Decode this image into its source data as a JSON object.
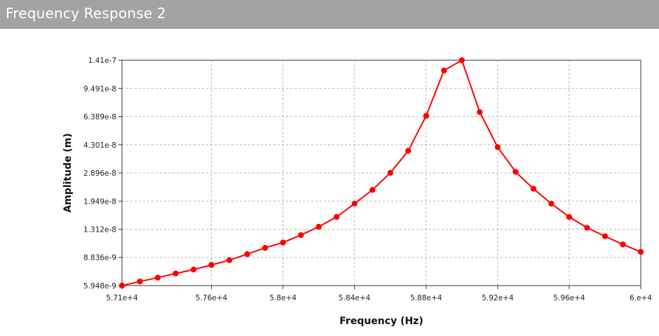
{
  "window": {
    "title": "Frequency Response 2"
  },
  "chart_data": {
    "type": "line",
    "title": "",
    "xlabel": "Frequency (Hz)",
    "ylabel": "Amplitude (m)",
    "x_ticks": [
      "5.71e+4",
      "5.76e+4",
      "5.8e+4",
      "5.84e+4",
      "5.88e+4",
      "5.92e+4",
      "5.96e+4",
      "6.e+4"
    ],
    "x_tick_values": [
      57100,
      57600,
      58000,
      58400,
      58800,
      59200,
      59600,
      60000
    ],
    "y_ticks": [
      "1.41e-7",
      "9.491e-8",
      "6.389e-8",
      "4.301e-8",
      "2.896e-8",
      "1.949e-8",
      "1.312e-8",
      "8.836e-9",
      "5.948e-9"
    ],
    "y_tick_values": [
      1.41e-07,
      9.491e-08,
      6.389e-08,
      4.301e-08,
      2.896e-08,
      1.949e-08,
      1.312e-08,
      8.836e-09,
      5.948e-09
    ],
    "xlim": [
      57100,
      60000
    ],
    "ylim": [
      5.948e-09,
      1.41e-07
    ],
    "y_scale": "log",
    "grid": true,
    "series_color": "#ff0000",
    "series": [
      {
        "x": [
          57100,
          57200,
          57300,
          57400,
          57500,
          57600,
          57700,
          57800,
          57900,
          58000,
          58100,
          58200,
          58300,
          58400,
          58500,
          58600,
          58700,
          58800,
          58900,
          59000,
          59100,
          59200,
          59300,
          59400,
          59500,
          59600,
          59700,
          59800,
          59900,
          60000
        ],
        "y": [
          5.95e-09,
          6.3e-09,
          6.65e-09,
          7.05e-09,
          7.45e-09,
          7.95e-09,
          8.5e-09,
          9.25e-09,
          1.01e-08,
          1.09e-08,
          1.21e-08,
          1.36e-08,
          1.56e-08,
          1.88e-08,
          2.28e-08,
          2.9e-08,
          3.95e-08,
          6.45e-08,
          1.22e-07,
          1.41e-07,
          6.8e-08,
          4.16e-08,
          2.94e-08,
          2.32e-08,
          1.88e-08,
          1.56e-08,
          1.34e-08,
          1.19e-08,
          1.06e-08,
          9.55e-09
        ]
      }
    ]
  }
}
